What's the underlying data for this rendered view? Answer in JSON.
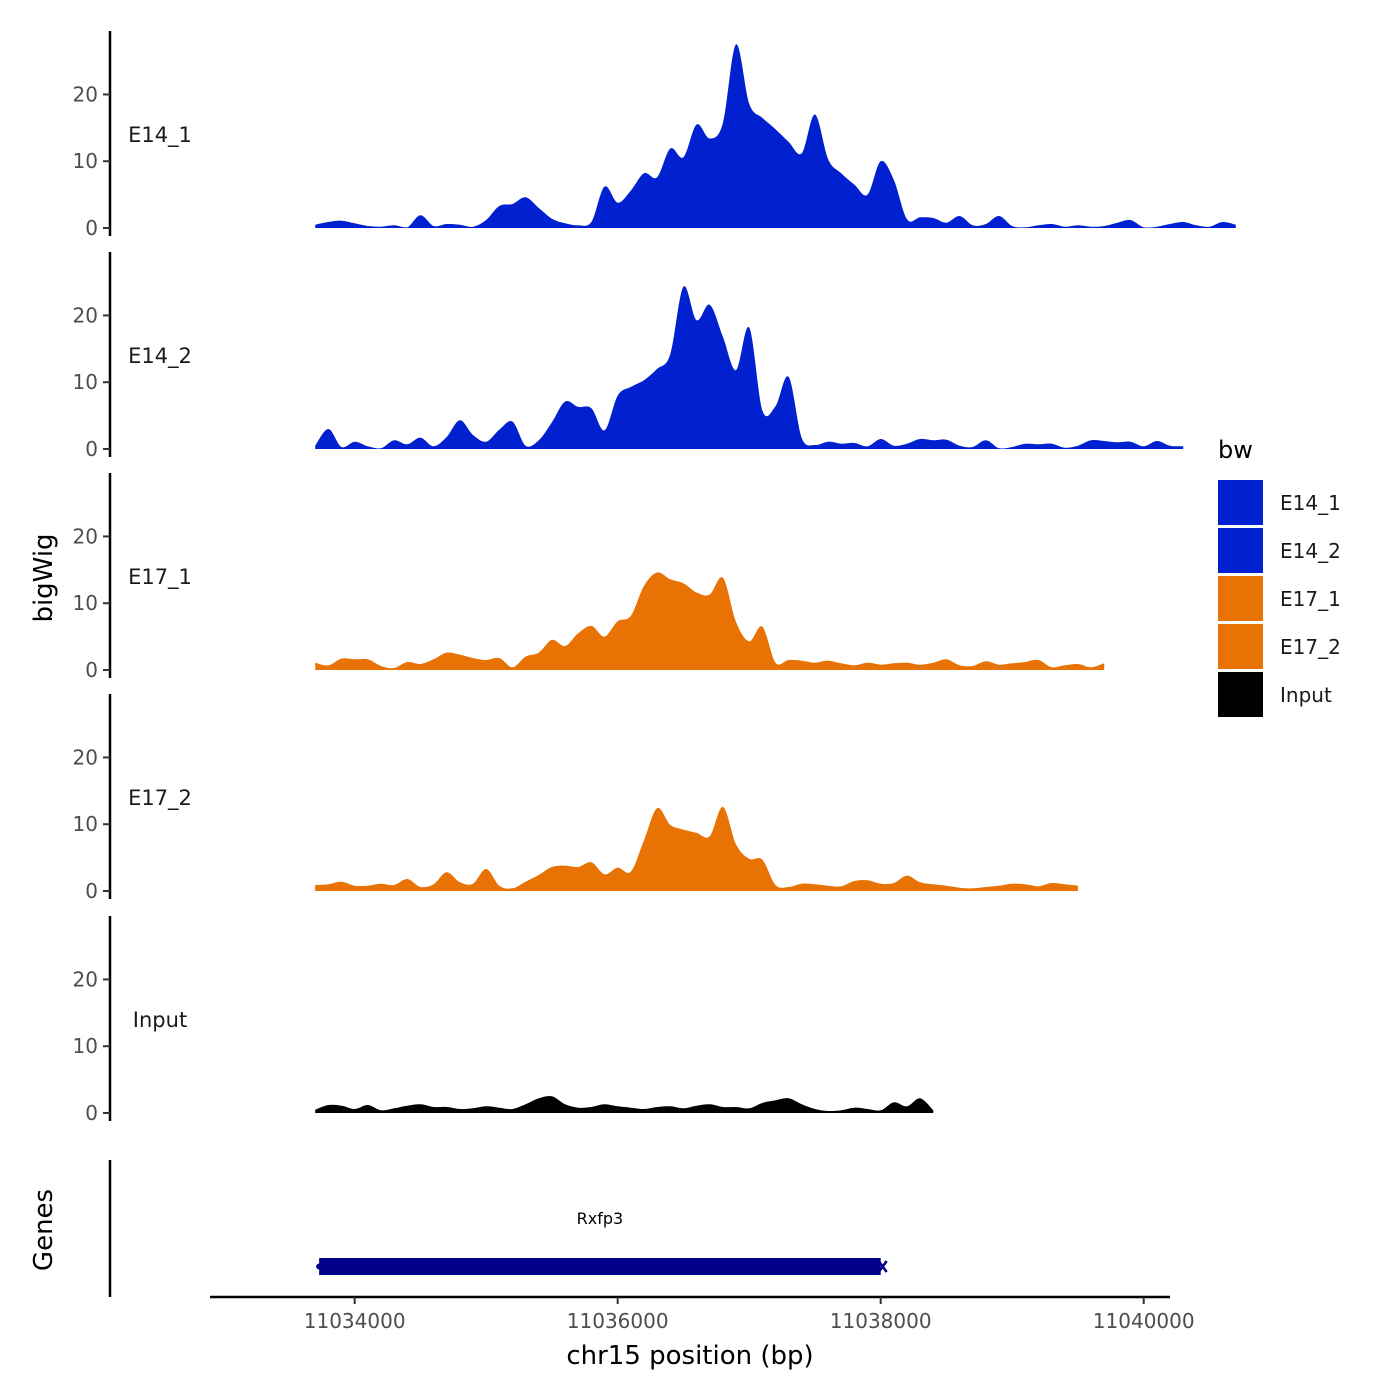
{
  "chart_data": {
    "type": "area",
    "chromosome": "chr15",
    "xlabel": "chr15 position (bp)",
    "ylabel": "bigWig",
    "genes_label": "Genes",
    "xlim": [
      11032900,
      11040200
    ],
    "x_ticks": [
      11034000,
      11036000,
      11038000,
      11040000
    ],
    "x_tick_labels": [
      "11034000",
      "11036000",
      "11038000",
      "11040000"
    ],
    "ylim": [
      0,
      29.5
    ],
    "y_ticks": [
      0,
      10,
      20
    ],
    "y_tick_labels": [
      "0",
      "10",
      "20"
    ],
    "x_step_bp": 100,
    "legend": {
      "title": "bw",
      "position": "right"
    },
    "series": [
      {
        "name": "E14_1",
        "color": "#0121D0",
        "start": 11033700,
        "values": [
          0.5,
          0.9,
          1.1,
          0.7,
          0.3,
          0.2,
          0.4,
          0.1,
          1.9,
          0.3,
          0.6,
          0.5,
          0.2,
          1.2,
          3.3,
          3.6,
          4.6,
          3.0,
          1.4,
          0.7,
          0.4,
          0.9,
          6.2,
          3.8,
          5.6,
          8.2,
          7.6,
          11.9,
          10.6,
          15.5,
          13.4,
          15.7,
          27.5,
          18.6,
          16.5,
          14.8,
          12.9,
          11.2,
          17.0,
          10.3,
          8.2,
          6.5,
          5.0,
          10.0,
          7.2,
          1.3,
          1.6,
          1.5,
          0.8,
          1.8,
          0.4,
          0.6,
          1.8,
          0.3,
          0.1,
          0.4,
          0.6,
          0.2,
          0.4,
          0.2,
          0.3,
          0.8,
          1.2,
          0.1,
          0.2,
          0.6,
          0.9,
          0.4,
          0.2,
          0.9,
          0.5
        ]
      },
      {
        "name": "E14_2",
        "color": "#0121D0",
        "start": 11033700,
        "values": [
          0.5,
          3.0,
          0.3,
          1.1,
          0.4,
          0.1,
          1.3,
          0.7,
          1.7,
          0.4,
          1.8,
          4.3,
          2.1,
          1.1,
          2.9,
          4.1,
          0.5,
          1.3,
          4.0,
          7.1,
          6.3,
          6.1,
          2.8,
          8.0,
          9.3,
          10.3,
          12.0,
          14.2,
          24.3,
          19.3,
          21.6,
          16.8,
          11.8,
          18.2,
          5.8,
          6.4,
          10.8,
          1.6,
          0.6,
          1.1,
          0.8,
          0.9,
          0.4,
          1.5,
          0.5,
          0.8,
          1.5,
          1.3,
          1.4,
          0.5,
          0.3,
          1.3,
          0.1,
          0.3,
          0.8,
          0.7,
          0.8,
          0.2,
          0.5,
          1.3,
          1.2,
          1.0,
          1.1,
          0.4,
          1.2,
          0.5,
          0.4
        ]
      },
      {
        "name": "E17_1",
        "color": "#E87204",
        "start": 11033700,
        "values": [
          1.1,
          0.7,
          1.7,
          1.6,
          1.6,
          0.6,
          0.3,
          1.2,
          0.9,
          1.6,
          2.6,
          2.3,
          1.8,
          1.5,
          1.8,
          0.4,
          2.0,
          2.6,
          4.5,
          3.6,
          5.5,
          6.6,
          5.0,
          7.3,
          8.1,
          12.6,
          14.6,
          13.6,
          13.0,
          11.6,
          11.3,
          13.8,
          7.2,
          4.3,
          6.5,
          1.1,
          1.5,
          1.4,
          1.1,
          1.4,
          1.0,
          0.7,
          1.1,
          0.8,
          1.0,
          1.1,
          0.8,
          1.1,
          1.6,
          0.7,
          0.6,
          1.3,
          0.8,
          1.0,
          1.2,
          1.5,
          0.4,
          0.7,
          0.9,
          0.4,
          1.0
        ]
      },
      {
        "name": "E17_2",
        "color": "#E87204",
        "start": 11033700,
        "values": [
          0.9,
          1.0,
          1.4,
          0.8,
          0.8,
          1.1,
          0.9,
          1.8,
          0.6,
          1.0,
          2.8,
          1.3,
          1.1,
          3.3,
          0.8,
          0.4,
          1.4,
          2.4,
          3.6,
          3.8,
          3.6,
          4.3,
          2.5,
          3.5,
          2.9,
          7.6,
          12.4,
          9.9,
          9.2,
          8.7,
          8.2,
          12.6,
          7.0,
          4.8,
          4.7,
          0.9,
          0.6,
          1.1,
          1.0,
          0.8,
          0.7,
          1.5,
          1.6,
          1.1,
          1.2,
          2.3,
          1.3,
          1.0,
          0.8,
          0.5,
          0.4,
          0.6,
          0.8,
          1.1,
          1.0,
          0.7,
          1.2,
          1.0,
          0.8
        ]
      },
      {
        "name": "Input",
        "color": "#000000",
        "start": 11033700,
        "values": [
          0.5,
          1.2,
          1.1,
          0.6,
          1.2,
          0.4,
          0.7,
          1.1,
          1.3,
          0.9,
          0.9,
          0.6,
          0.7,
          1.0,
          0.8,
          0.6,
          1.3,
          2.2,
          2.5,
          1.3,
          0.8,
          0.9,
          1.3,
          1.0,
          0.8,
          0.6,
          0.9,
          1.0,
          0.7,
          1.1,
          1.3,
          0.9,
          0.9,
          0.7,
          1.5,
          1.9,
          2.2,
          1.3,
          0.6,
          0.3,
          0.4,
          0.8,
          0.6,
          0.4,
          1.6,
          1.0,
          2.2,
          0.4
        ]
      }
    ],
    "genes": [
      {
        "name": "Rxfp3",
        "start": 11033730,
        "end": 11038000,
        "strand": "+",
        "color": "#00008B"
      }
    ]
  }
}
